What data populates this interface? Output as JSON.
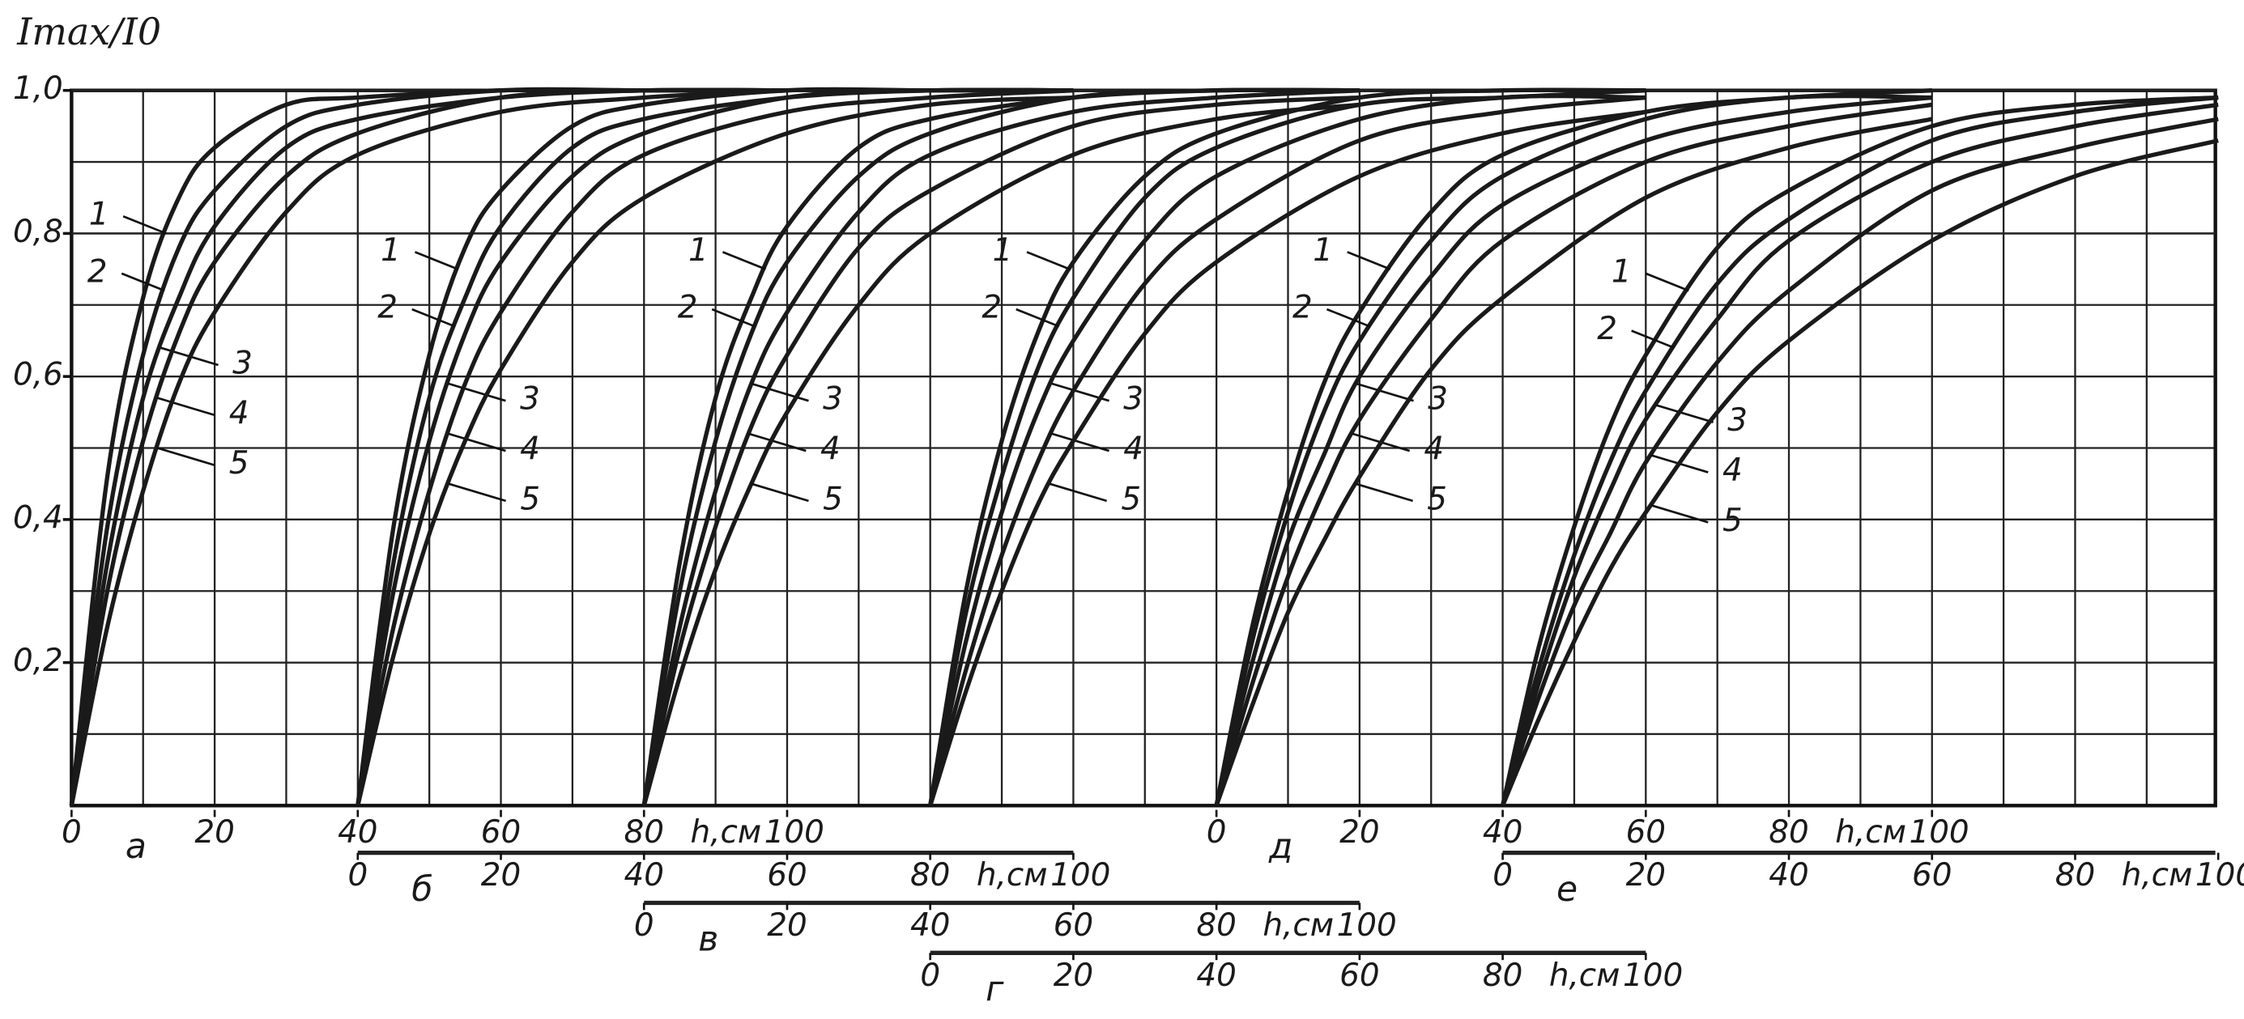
{
  "chart_data": {
    "type": "line",
    "y_label": "Imax/I0",
    "x_label": "h,см",
    "color": "#1a1a1a",
    "grid": true,
    "xlim": [
      0,
      100
    ],
    "xticks": [
      0,
      20,
      40,
      60,
      80,
      100
    ],
    "ylim": [
      0,
      1
    ],
    "yticks": [
      {
        "value": 0.2,
        "label": "0,2"
      },
      {
        "value": 0.4,
        "label": "0,4"
      },
      {
        "value": 0.6,
        "label": "0,6"
      },
      {
        "value": 0.8,
        "label": "0,8"
      },
      {
        "value": 1.0,
        "label": "1,0"
      }
    ],
    "x": [
      0,
      5,
      10,
      15,
      20,
      30,
      40,
      60,
      80,
      100
    ],
    "panels": [
      {
        "label": "а",
        "series": [
          {
            "name": "1",
            "values": [
              0,
              0.46,
              0.71,
              0.85,
              0.92,
              0.98,
              0.99,
              1.0,
              1.0,
              1.0
            ]
          },
          {
            "name": "2",
            "values": [
              0,
              0.39,
              0.63,
              0.78,
              0.86,
              0.95,
              0.98,
              1.0,
              1.0,
              1.0
            ]
          },
          {
            "name": "3",
            "values": [
              0,
              0.34,
              0.57,
              0.71,
              0.81,
              0.92,
              0.96,
              0.99,
              1.0,
              1.0
            ]
          },
          {
            "name": "4",
            "values": [
              0,
              0.3,
              0.51,
              0.66,
              0.76,
              0.88,
              0.94,
              0.99,
              1.0,
              1.0
            ]
          },
          {
            "name": "5",
            "values": [
              0,
              0.25,
              0.44,
              0.59,
              0.69,
              0.83,
              0.91,
              0.97,
              0.99,
              1.0
            ]
          }
        ]
      },
      {
        "label": "б",
        "series": [
          {
            "name": "1",
            "values": [
              0,
              0.39,
              0.63,
              0.78,
              0.86,
              0.95,
              0.98,
              1.0,
              1.0,
              1.0
            ]
          },
          {
            "name": "2",
            "values": [
              0,
              0.34,
              0.57,
              0.71,
              0.81,
              0.92,
              0.96,
              0.99,
              1.0,
              1.0
            ]
          },
          {
            "name": "3",
            "values": [
              0,
              0.3,
              0.51,
              0.66,
              0.76,
              0.88,
              0.94,
              0.99,
              1.0,
              1.0
            ]
          },
          {
            "name": "4",
            "values": [
              0,
              0.25,
              0.44,
              0.59,
              0.69,
              0.83,
              0.91,
              0.97,
              0.99,
              1.0
            ]
          },
          {
            "name": "5",
            "values": [
              0,
              0.21,
              0.38,
              0.51,
              0.61,
              0.76,
              0.85,
              0.94,
              0.98,
              0.99
            ]
          }
        ]
      },
      {
        "label": "в",
        "series": [
          {
            "name": "1",
            "values": [
              0,
              0.34,
              0.57,
              0.71,
              0.81,
              0.92,
              0.96,
              0.99,
              1.0,
              1.0
            ]
          },
          {
            "name": "2",
            "values": [
              0,
              0.3,
              0.51,
              0.66,
              0.76,
              0.88,
              0.94,
              0.99,
              1.0,
              1.0
            ]
          },
          {
            "name": "3",
            "values": [
              0,
              0.25,
              0.44,
              0.59,
              0.69,
              0.83,
              0.91,
              0.97,
              0.99,
              1.0
            ]
          },
          {
            "name": "4",
            "values": [
              0,
              0.22,
              0.39,
              0.53,
              0.63,
              0.78,
              0.86,
              0.95,
              0.98,
              0.99
            ]
          },
          {
            "name": "5",
            "values": [
              0,
              0.18,
              0.33,
              0.45,
              0.55,
              0.7,
              0.8,
              0.91,
              0.96,
              0.98
            ]
          }
        ]
      },
      {
        "label": "г",
        "series": [
          {
            "name": "1",
            "values": [
              0,
              0.3,
              0.51,
              0.66,
              0.76,
              0.88,
              0.94,
              0.99,
              1.0,
              1.0
            ]
          },
          {
            "name": "2",
            "values": [
              0,
              0.27,
              0.46,
              0.61,
              0.71,
              0.85,
              0.92,
              0.98,
              0.99,
              1.0
            ]
          },
          {
            "name": "3",
            "values": [
              0,
              0.23,
              0.41,
              0.55,
              0.65,
              0.79,
              0.88,
              0.96,
              0.99,
              0.99
            ]
          },
          {
            "name": "4",
            "values": [
              0,
              0.19,
              0.35,
              0.48,
              0.58,
              0.73,
              0.82,
              0.93,
              0.97,
              0.99
            ]
          },
          {
            "name": "5",
            "values": [
              0,
              0.16,
              0.3,
              0.42,
              0.51,
              0.66,
              0.76,
              0.88,
              0.94,
              0.97
            ]
          }
        ]
      },
      {
        "label": "д",
        "series": [
          {
            "name": "1",
            "values": [
              0,
              0.25,
              0.44,
              0.59,
              0.69,
              0.83,
              0.91,
              0.97,
              0.99,
              1.0
            ]
          },
          {
            "name": "2",
            "values": [
              0,
              0.23,
              0.41,
              0.55,
              0.65,
              0.79,
              0.88,
              0.96,
              0.99,
              0.99
            ]
          },
          {
            "name": "3",
            "values": [
              0,
              0.2,
              0.37,
              0.49,
              0.6,
              0.74,
              0.84,
              0.93,
              0.97,
              0.99
            ]
          },
          {
            "name": "4",
            "values": [
              0,
              0.17,
              0.32,
              0.44,
              0.54,
              0.68,
              0.79,
              0.9,
              0.95,
              0.98
            ]
          },
          {
            "name": "5",
            "values": [
              0,
              0.14,
              0.27,
              0.37,
              0.46,
              0.61,
              0.71,
              0.85,
              0.92,
              0.96
            ]
          }
        ]
      },
      {
        "label": "е",
        "series": [
          {
            "name": "1",
            "values": [
              0,
              0.22,
              0.39,
              0.53,
              0.63,
              0.78,
              0.86,
              0.95,
              0.98,
              0.99
            ]
          },
          {
            "name": "2",
            "values": [
              0,
              0.19,
              0.35,
              0.48,
              0.58,
              0.73,
              0.82,
              0.93,
              0.97,
              0.99
            ]
          },
          {
            "name": "3",
            "values": [
              0,
              0.17,
              0.32,
              0.44,
              0.54,
              0.68,
              0.79,
              0.9,
              0.95,
              0.98
            ]
          },
          {
            "name": "4",
            "values": [
              0,
              0.15,
              0.28,
              0.38,
              0.48,
              0.62,
              0.72,
              0.86,
              0.92,
              0.96
            ]
          },
          {
            "name": "5",
            "values": [
              0,
              0.12,
              0.23,
              0.33,
              0.41,
              0.55,
              0.65,
              0.79,
              0.88,
              0.93
            ]
          }
        ]
      }
    ]
  }
}
